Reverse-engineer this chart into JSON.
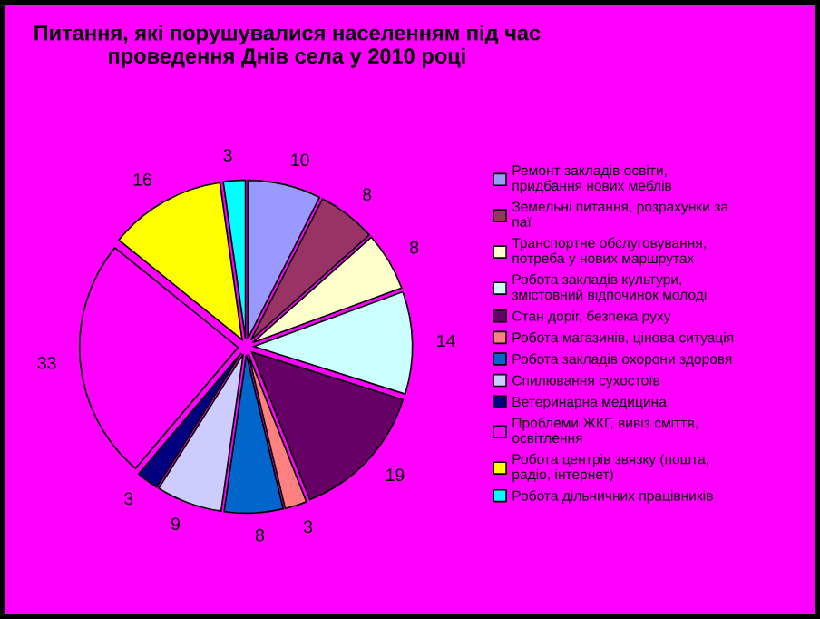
{
  "chart_data": {
    "type": "pie",
    "title": "Питання, які порушувалися населенням під час\nпроведення Днів села у 2010 році",
    "categories": [
      "Ремонт закладів освіти,\nпридбання нових меблів",
      "Земельні питання, розрахунки за\nпаї",
      "Транспортне обслуговування,\nпотреба у нових маршрутах",
      "Робота закладів культури,\nзмістовний відпочинок молоді",
      "Стан доріг, безпека руху",
      "Робота магазинів, цінова ситуація",
      "Робота закладів охорони здоровя",
      "Спилювання сухостоїв",
      "Ветеринарна медицина",
      "Проблеми ЖКГ, вивіз сміття,\nосвітлення",
      "Робота центрів звязку (пошта,\nрадіо, інтернет)",
      "Робота дільничних працівників"
    ],
    "values": [
      10,
      8,
      8,
      14,
      19,
      3,
      8,
      9,
      3,
      33,
      16,
      3
    ],
    "colors": [
      "#9999ff",
      "#993366",
      "#ffffcc",
      "#ccffff",
      "#660066",
      "#ff8080",
      "#0066cc",
      "#ccccff",
      "#000080",
      "#ff00ff",
      "#ffff00",
      "#00ffff"
    ],
    "data_labels": true,
    "legend": "right"
  }
}
